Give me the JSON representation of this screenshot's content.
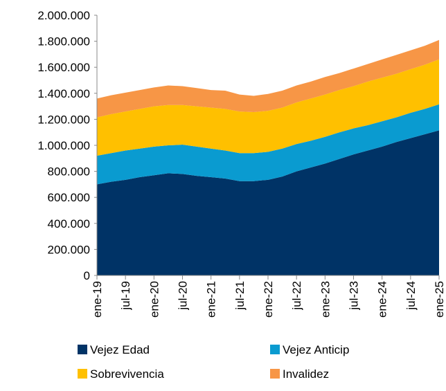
{
  "chart_data": {
    "type": "area",
    "stacked": true,
    "categories": [
      "ene-19",
      null,
      "jul-19",
      null,
      "ene-20",
      null,
      "jul-20",
      null,
      "ene-21",
      null,
      "jul-21",
      null,
      "ene-22",
      null,
      "jul-22",
      null,
      "ene-23",
      null,
      "jul-23",
      null,
      "ene-24",
      null,
      "jul-24",
      null,
      "ene-25"
    ],
    "series": [
      {
        "name": "Vejez Edad",
        "color": "#003366",
        "values": [
          700000,
          720000,
          735000,
          755000,
          770000,
          785000,
          780000,
          765000,
          755000,
          745000,
          725000,
          725000,
          735000,
          760000,
          800000,
          830000,
          860000,
          895000,
          930000,
          960000,
          990000,
          1025000,
          1055000,
          1085000,
          1115000
        ]
      },
      {
        "name": "Vejez Anticip",
        "color": "#0a9bd0",
        "values": [
          220000,
          220000,
          225000,
          220000,
          220000,
          215000,
          225000,
          225000,
          220000,
          215000,
          215000,
          215000,
          215000,
          215000,
          210000,
          205000,
          205000,
          205000,
          200000,
          195000,
          195000,
          190000,
          195000,
          195000,
          200000
        ]
      },
      {
        "name": "Sobrevivencia",
        "color": "#ffc000",
        "values": [
          295000,
          300000,
          300000,
          305000,
          310000,
          310000,
          305000,
          310000,
          315000,
          320000,
          320000,
          315000,
          315000,
          315000,
          320000,
          325000,
          325000,
          325000,
          325000,
          335000,
          335000,
          335000,
          335000,
          340000,
          345000
        ]
      },
      {
        "name": "Invalidez",
        "color": "#f79646",
        "values": [
          145000,
          145000,
          145000,
          145000,
          145000,
          150000,
          145000,
          140000,
          135000,
          140000,
          130000,
          125000,
          130000,
          130000,
          130000,
          130000,
          135000,
          130000,
          135000,
          135000,
          140000,
          145000,
          145000,
          145000,
          150000
        ]
      }
    ],
    "ylim": [
      0,
      2000000
    ],
    "yticks": [
      0,
      {
        "value": 200000,
        "label": "200.000"
      },
      {
        "value": 400000,
        "label": "400.000"
      },
      {
        "value": 600000,
        "label": "600.000"
      },
      {
        "value": 800000,
        "label": "800.000"
      },
      {
        "value": 1000000,
        "label": "1.000.000"
      },
      {
        "value": 1200000,
        "label": "1.200.000"
      },
      {
        "value": 1400000,
        "label": "1.400.000"
      },
      {
        "value": 1600000,
        "label": "1.600.000"
      },
      {
        "value": 1800000,
        "label": "1.800.000"
      },
      {
        "value": 2000000,
        "label": "2.000.000"
      }
    ],
    "grid": false
  }
}
